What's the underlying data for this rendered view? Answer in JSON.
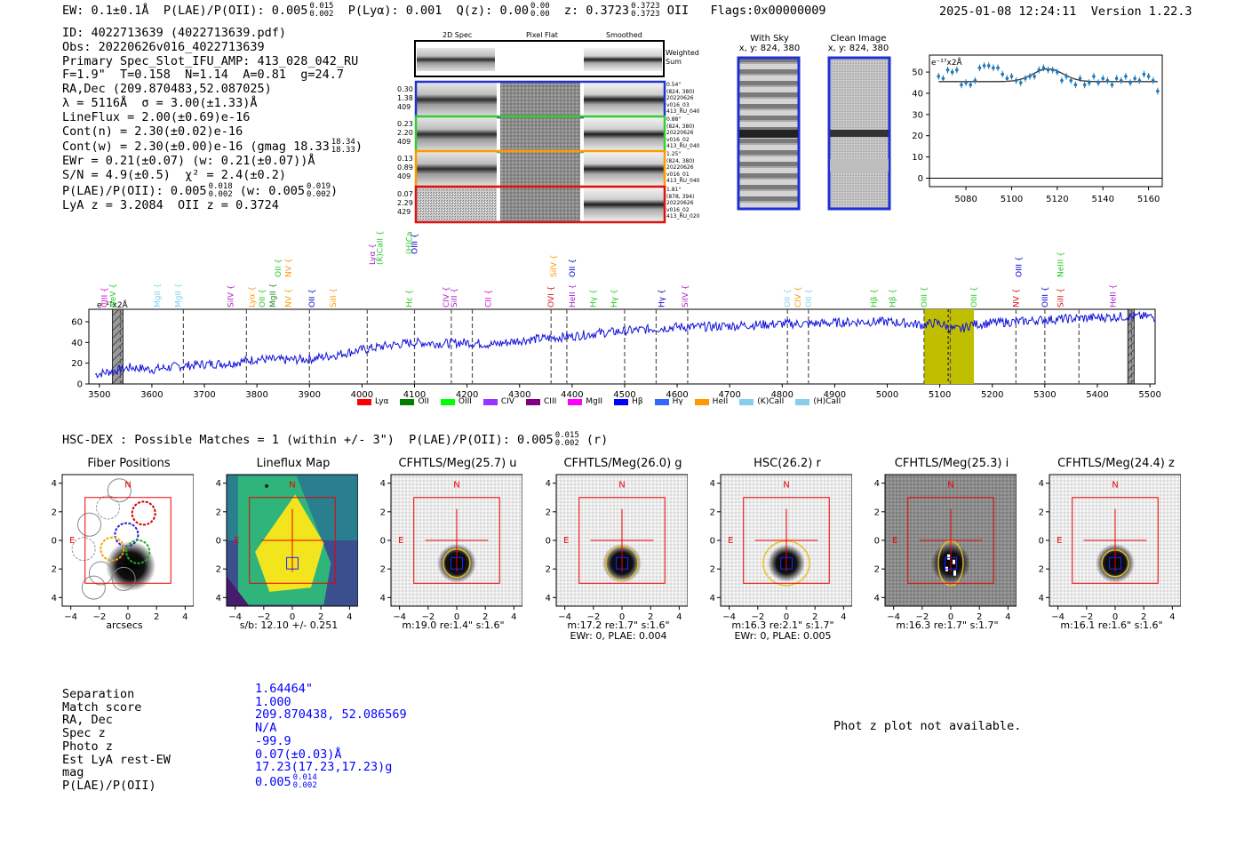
{
  "header": {
    "ew_label": "EW: 0.1±0.1",
    "ew_unit": "Å",
    "plae_label": "P(LAE)/P(OII): 0.005",
    "plae_sup": "0.015",
    "plae_sub": "0.002",
    "plya": "P(Lyα): 0.001",
    "qz_label": "Q(z): 0.00",
    "qz_sup": "0.00",
    "qz_sub": "0.00",
    "z_label": "z: 0.3723",
    "z_sup": "0.3723",
    "z_sub": "0.3723",
    "z_line": "OII",
    "flags": "Flags:0x00000009",
    "datetime": "2025-01-08 12:24:11",
    "version": "Version 1.22.3"
  },
  "info": {
    "id": "ID: 4022713639 (4022713639.pdf)",
    "obs": "Obs: 20220626v016_4022713639",
    "primary": "Primary Spec_Slot_IFU_AMP: 413_028_042_RU",
    "fwhm": "F=1.9\"  T=0.158  N=1.14  A=0.81  g=24.7",
    "radec": "RA,Dec (209.870483,52.087025)",
    "lambda": "λ = 5116Å  σ = 3.00(±1.33)Å",
    "lineflux": "LineFlux = 2.00(±0.69)e-16",
    "contn": "Cont(n) = 2.30(±0.02)e-16",
    "contw": "Cont(w) = 2.30(±0.00)e-16 (gmag 18.33",
    "contw_sup": "18.34",
    "contw_sub": "18.33",
    "contw_end": ")",
    "ewr": "EWr = 0.21(±0.07) (w: 0.21(±0.07))Å",
    "sn": "S/N = 4.9(±0.5)  χ² = 2.4(±0.2)",
    "plae": "P(LAE)/P(OII): 0.005",
    "plae_sup": "0.018",
    "plae_sub": "0.002",
    "plae_w": "(w: 0.005",
    "plae_w_sup": "0.019",
    "plae_w_sub": "0.002",
    "plae_w_end": ")",
    "lyaz": "LyA z = 3.2084  OII z = 0.3724"
  },
  "stamps": {
    "col_headers": [
      "2D Spec",
      "Pixel Flat",
      "Smoothed"
    ],
    "weighted_label": "Weighted Sum",
    "rows": [
      {
        "left": [
          "0.30",
          "1.38",
          "409"
        ],
        "right": [
          "0.54\"",
          "(824, 380)",
          "20220626",
          "v016_03",
          "413_RU_040"
        ],
        "color": "#2233cc"
      },
      {
        "left": [
          "0.23",
          "2.20",
          "409"
        ],
        "right": [
          "0.88\"",
          "(824, 380)",
          "20220626",
          "v016_02",
          "413_RU_040"
        ],
        "color": "#33cc33"
      },
      {
        "left": [
          "0.13",
          "0.89",
          "409"
        ],
        "right": [
          "1.25\"",
          "(824, 380)",
          "20220626",
          "v016_01",
          "413_RU_040"
        ],
        "color": "#ff9900"
      },
      {
        "left": [
          "0.07",
          "2.29",
          "429"
        ],
        "right": [
          "1.81\"",
          "(878, 394)",
          "20220626",
          "v016_02",
          "413_RU_020"
        ],
        "color": "#dd1111"
      }
    ]
  },
  "sky": {
    "with_sky": "With Sky",
    "clean": "Clean Image",
    "xy": "x, y: 824, 380"
  },
  "chart_data": [
    {
      "type": "scatter",
      "title": "",
      "unit_label": "e⁻¹⁷x2Å",
      "xlim": [
        5064,
        5166
      ],
      "ylim": [
        -4,
        58
      ],
      "xticks": [
        5080,
        5100,
        5120,
        5140,
        5160
      ],
      "yticks": [
        0,
        10,
        20,
        30,
        40,
        50
      ],
      "x": [
        5068,
        5070,
        5072,
        5074,
        5076,
        5078,
        5080,
        5082,
        5084,
        5086,
        5088,
        5090,
        5092,
        5094,
        5096,
        5098,
        5100,
        5102,
        5104,
        5106,
        5108,
        5110,
        5112,
        5114,
        5116,
        5118,
        5120,
        5122,
        5124,
        5126,
        5128,
        5130,
        5132,
        5134,
        5136,
        5138,
        5140,
        5142,
        5144,
        5146,
        5148,
        5150,
        5152,
        5154,
        5156,
        5158,
        5160,
        5162,
        5164
      ],
      "y": [
        48,
        47,
        51,
        50,
        51,
        44,
        45,
        44,
        46,
        52,
        53,
        53,
        52,
        52,
        49,
        47,
        48,
        46,
        45,
        47,
        48,
        48,
        51,
        52,
        51,
        51,
        50,
        46,
        48,
        46,
        44,
        47,
        44,
        45,
        48,
        45,
        47,
        46,
        44,
        47,
        46,
        48,
        45,
        47,
        46,
        49,
        48,
        46,
        41
      ],
      "fit_baseline": 45.5,
      "fit_peak": 51.5,
      "fit_center": 5116,
      "fit_sigma": 3.0
    },
    {
      "type": "line",
      "title": "",
      "unit_label": "e⁻¹⁷x2Å",
      "xlim": [
        3480,
        5510
      ],
      "ylim": [
        0,
        72
      ],
      "xticks": [
        3500,
        3600,
        3700,
        3800,
        3900,
        4000,
        4100,
        4200,
        4300,
        4400,
        4500,
        4600,
        4700,
        4800,
        4900,
        5000,
        5100,
        5200,
        5300,
        5400,
        5500
      ],
      "yticks": [
        0,
        20,
        40,
        60
      ],
      "knots_x": [
        3480,
        3520,
        3560,
        3600,
        3650,
        3700,
        3750,
        3800,
        3850,
        3900,
        3950,
        4000,
        4050,
        4100,
        4150,
        4200,
        4250,
        4300,
        4350,
        4400,
        4450,
        4500,
        4550,
        4600,
        4650,
        4700,
        4750,
        4800,
        4850,
        4900,
        4950,
        5000,
        5050,
        5080,
        5120,
        5160,
        5200,
        5250,
        5300,
        5350,
        5400,
        5450,
        5500,
        5510
      ],
      "knots_y": [
        8,
        12,
        16,
        14,
        17,
        19,
        20,
        24,
        23,
        24,
        28,
        33,
        37,
        40,
        39,
        40,
        38,
        42,
        44,
        46,
        49,
        51,
        53,
        55,
        55,
        56,
        57,
        58,
        58,
        59,
        60,
        60,
        58,
        56,
        55,
        57,
        59,
        60,
        62,
        63,
        64,
        65,
        65,
        64
      ],
      "lines": [
        {
          "label": "CIII",
          "x": 3510,
          "color": "#e000e0",
          "row": 0
        },
        {
          "label": "NeV",
          "x": 3526,
          "color": "#22cc22",
          "row": 0
        },
        {
          "label": "MgII",
          "x": 3610,
          "color": "#87ceeb",
          "row": 0
        },
        {
          "label": "MgII",
          "x": 3650,
          "color": "#87ceeb",
          "row": 0
        },
        {
          "label": "SiIV",
          "x": 3750,
          "color": "#aa22cc",
          "row": 0
        },
        {
          "label": "Lyα",
          "x": 3790,
          "color": "#ff9900",
          "row": 0
        },
        {
          "label": "OII",
          "x": 3810,
          "color": "#22cc22",
          "row": 0
        },
        {
          "label": "MgII",
          "x": 3830,
          "color": "#228822",
          "row": 0
        },
        {
          "label": "NV",
          "x": 3860,
          "color": "#ff9900",
          "row": 0
        },
        {
          "label": "OII",
          "x": 3840,
          "color": "#22cc22",
          "row": 1
        },
        {
          "label": "NV",
          "x": 3860,
          "color": "#ff9900",
          "row": 1
        },
        {
          "label": "OII",
          "x": 3905,
          "color": "#0000cc",
          "row": 0
        },
        {
          "label": "SiII",
          "x": 3945,
          "color": "#ff9900",
          "row": 0
        },
        {
          "label": "Lyα",
          "x": 4020,
          "color": "#aa22cc",
          "row": 2
        },
        {
          "label": "(K)CaII",
          "x": 4034,
          "color": "#22cc22",
          "row": 2
        },
        {
          "label": "Hε",
          "x": 4090,
          "color": "#22cc22",
          "row": 0
        },
        {
          "label": "(H)CaII",
          "x": 4090,
          "color": "#22cc22",
          "row": 3
        },
        {
          "label": "OIII",
          "x": 4100,
          "color": "#0000cc",
          "row": 3
        },
        {
          "label": "CIV",
          "x": 4160,
          "color": "#aa22cc",
          "row": 0
        },
        {
          "label": "SiII",
          "x": 4175,
          "color": "#aa22cc",
          "row": 0
        },
        {
          "label": "CII",
          "x": 4240,
          "color": "#e000e0",
          "row": 0
        },
        {
          "label": "OVI",
          "x": 4360,
          "color": "#dd1111",
          "row": 0
        },
        {
          "label": "SiIV",
          "x": 4365,
          "color": "#ff9900",
          "row": 1
        },
        {
          "label": "HeII",
          "x": 4400,
          "color": "#aa22cc",
          "row": 0
        },
        {
          "label": "OII",
          "x": 4400,
          "color": "#0000cc",
          "row": 1
        },
        {
          "label": "Hγ",
          "x": 4440,
          "color": "#22cc22",
          "row": 0
        },
        {
          "label": "Hγ",
          "x": 4480,
          "color": "#22cc22",
          "row": 0
        },
        {
          "label": "Hγ",
          "x": 4570,
          "color": "#0000cc",
          "row": 0
        },
        {
          "label": "SiIV",
          "x": 4615,
          "color": "#aa22cc",
          "row": 0
        },
        {
          "label": "OII",
          "x": 4810,
          "color": "#87ceeb",
          "row": 0
        },
        {
          "label": "CIV",
          "x": 4830,
          "color": "#ff9900",
          "row": 0
        },
        {
          "label": "OII",
          "x": 4850,
          "color": "#87ceeb",
          "row": 0
        },
        {
          "label": "Hβ",
          "x": 4975,
          "color": "#22cc22",
          "row": 0
        },
        {
          "label": "Hβ",
          "x": 5010,
          "color": "#22cc22",
          "row": 0
        },
        {
          "label": "OIII",
          "x": 5070,
          "color": "#22cc22",
          "row": 0
        },
        {
          "label": "OIII",
          "x": 5165,
          "color": "#22cc22",
          "row": 0
        },
        {
          "label": "NV",
          "x": 5245,
          "color": "#dd1111",
          "row": 0
        },
        {
          "label": "OIII",
          "x": 5250,
          "color": "#0000cc",
          "row": 1
        },
        {
          "label": "OIII",
          "x": 5300,
          "color": "#0000cc",
          "row": 0
        },
        {
          "label": "SiII",
          "x": 5330,
          "color": "#dd1111",
          "row": 0
        },
        {
          "label": "NeIII",
          "x": 5330,
          "color": "#22cc22",
          "row": 1
        },
        {
          "label": "HeII",
          "x": 5430,
          "color": "#aa22cc",
          "row": 0
        }
      ],
      "dashed_x": [
        3540,
        3660,
        3780,
        3900,
        4010,
        4100,
        4170,
        4210,
        4360,
        4390,
        4500,
        4560,
        4620,
        4810,
        4850,
        5070,
        5120,
        5245,
        5300,
        5365,
        5465
      ],
      "emission_band": [
        5070,
        5165
      ],
      "hatched": [
        [
          3525,
          3545
        ],
        [
          5458,
          5470
        ]
      ],
      "legend": [
        {
          "label": "Lyα",
          "color": "#ff0000"
        },
        {
          "label": "OII",
          "color": "#008000"
        },
        {
          "label": "OIII",
          "color": "#00ff00"
        },
        {
          "label": "CIV",
          "color": "#9933ff"
        },
        {
          "label": "CIII",
          "color": "#800080"
        },
        {
          "label": "MgII",
          "color": "#ff00ff"
        },
        {
          "label": "Hβ",
          "color": "#0000ff"
        },
        {
          "label": "Hγ",
          "color": "#3366ff"
        },
        {
          "label": "HeII",
          "color": "#ff9900"
        },
        {
          "label": "(K)CaII",
          "color": "#87ceeb"
        },
        {
          "label": "(H)CaII",
          "color": "#87ceeb"
        }
      ]
    }
  ],
  "matches": {
    "line": "HSC-DEX : Possible Matches = 1 (within +/- 3\")  P(LAE)/P(OII): 0.005",
    "sup": "0.015",
    "sub": "0.002",
    "end": "(r)"
  },
  "cutouts": [
    {
      "title": "Fiber Positions",
      "captions": [
        "arcsecs"
      ]
    },
    {
      "title": "Lineflux Map",
      "captions": [
        "s/b: 12.10 +/- 0.251"
      ]
    },
    {
      "title": "CFHTLS/Meg(25.7) u",
      "captions": [
        "m:19.0  re:1.4\"  s:1.6\""
      ]
    },
    {
      "title": "CFHTLS/Meg(26.0) g",
      "captions": [
        "m:17.2  re:1.7\"  s:1.6\"",
        "EWr: 0, PLAE: 0.004"
      ]
    },
    {
      "title": "HSC(26.2) r",
      "captions": [
        "m:16.3  re:2.1\"  s:1.7\"",
        "EWr: 0, PLAE: 0.005"
      ]
    },
    {
      "title": "CFHTLS/Meg(25.3) i",
      "captions": [
        "m:16.3  re:1.7\"  s:1.7\""
      ]
    },
    {
      "title": "CFHTLS/Meg(24.4) z",
      "captions": [
        "m:16.1  re:1.6\"  s:1.6\""
      ]
    }
  ],
  "cutout_ticks": [
    "−4",
    "−2",
    "0",
    "2",
    "4"
  ],
  "compass": {
    "n": "N",
    "e": "E"
  },
  "summary": {
    "labels": [
      "Separation",
      "Match score",
      "RA, Dec",
      "Spec z",
      "Photo z",
      "Est LyA rest-EW",
      "mag",
      "P(LAE)/P(OII)"
    ],
    "values": [
      "1.64464\"",
      "1.000",
      "209.870438, 52.086569",
      "N/A",
      "-99.9",
      "0.07(±0.03)Å",
      "17.23(17.23,17.23)g",
      "0.005"
    ],
    "plae_sup": "0.014",
    "plae_sub": "0.002"
  },
  "photz": "Phot z plot not available."
}
